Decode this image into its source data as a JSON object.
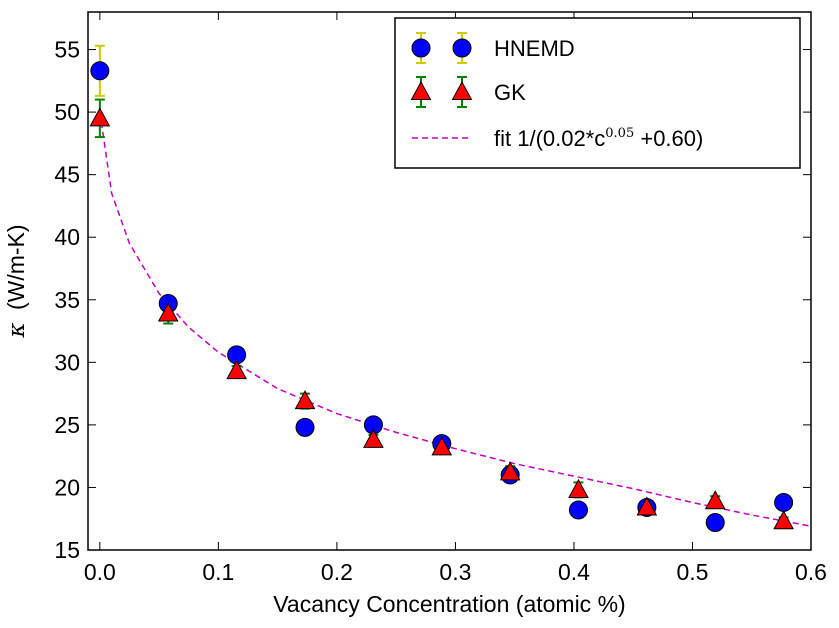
{
  "chart_data": {
    "type": "scatter",
    "title": "",
    "xlabel": "Vacancy Concentration (atomic %)",
    "ylabel_symbol": "κ",
    "ylabel": "(W/m-K)",
    "xlim": [
      -0.01,
      0.6
    ],
    "ylim": [
      15,
      58
    ],
    "xticks": [
      0.0,
      0.1,
      0.2,
      0.3,
      0.4,
      0.5,
      0.6
    ],
    "xtick_labels": [
      "0.0",
      "0.1",
      "0.2",
      "0.3",
      "0.4",
      "0.5",
      "0.6"
    ],
    "yticks": [
      15,
      20,
      25,
      30,
      35,
      40,
      45,
      50,
      55
    ],
    "ytick_labels": [
      "15",
      "20",
      "25",
      "30",
      "35",
      "40",
      "45",
      "50",
      "55"
    ],
    "x": [
      0.0,
      0.0577,
      0.1154,
      0.1731,
      0.2308,
      0.2885,
      0.3462,
      0.4038,
      0.4615,
      0.5192,
      0.5769
    ],
    "series": [
      {
        "name": "HNEMD",
        "marker": "circle",
        "color": "#0000ff",
        "errcolor": "#cccc00",
        "values": [
          53.3,
          34.7,
          30.6,
          24.8,
          25.0,
          23.5,
          21.0,
          18.2,
          18.4,
          17.2,
          18.8
        ],
        "errors": [
          2.0,
          0.6,
          0.6,
          0.5,
          0.6,
          0.4,
          0.4,
          0.3,
          0.4,
          0.3,
          0.3
        ]
      },
      {
        "name": "GK",
        "marker": "triangle",
        "color": "#ff0000",
        "errcolor": "#008000",
        "values": [
          49.5,
          33.9,
          29.3,
          26.9,
          23.8,
          23.2,
          21.2,
          19.8,
          18.4,
          18.9,
          17.3
        ],
        "errors": [
          1.5,
          0.8,
          0.4,
          0.6,
          0.4,
          0.4,
          0.5,
          0.6,
          0.3,
          0.4,
          0.3
        ]
      }
    ],
    "fit": {
      "label_prefix": "fit 1/(0.02*c",
      "label_exponent": "0.05",
      "label_suffix": " +0.60)",
      "color": "#c000c0",
      "style": "dashed",
      "samples": [
        [
          0.0,
          50.0
        ],
        [
          0.01,
          43.5
        ],
        [
          0.025,
          39.5
        ],
        [
          0.05,
          35.5
        ],
        [
          0.075,
          32.8
        ],
        [
          0.1,
          30.8
        ],
        [
          0.15,
          27.9
        ],
        [
          0.2,
          25.9
        ],
        [
          0.25,
          24.4
        ],
        [
          0.3,
          23.1
        ],
        [
          0.35,
          21.9
        ],
        [
          0.4,
          20.9
        ],
        [
          0.45,
          19.9
        ],
        [
          0.5,
          18.8
        ],
        [
          0.55,
          17.8
        ],
        [
          0.6,
          16.9
        ]
      ]
    },
    "legend_position": "top-right",
    "grid": false
  }
}
